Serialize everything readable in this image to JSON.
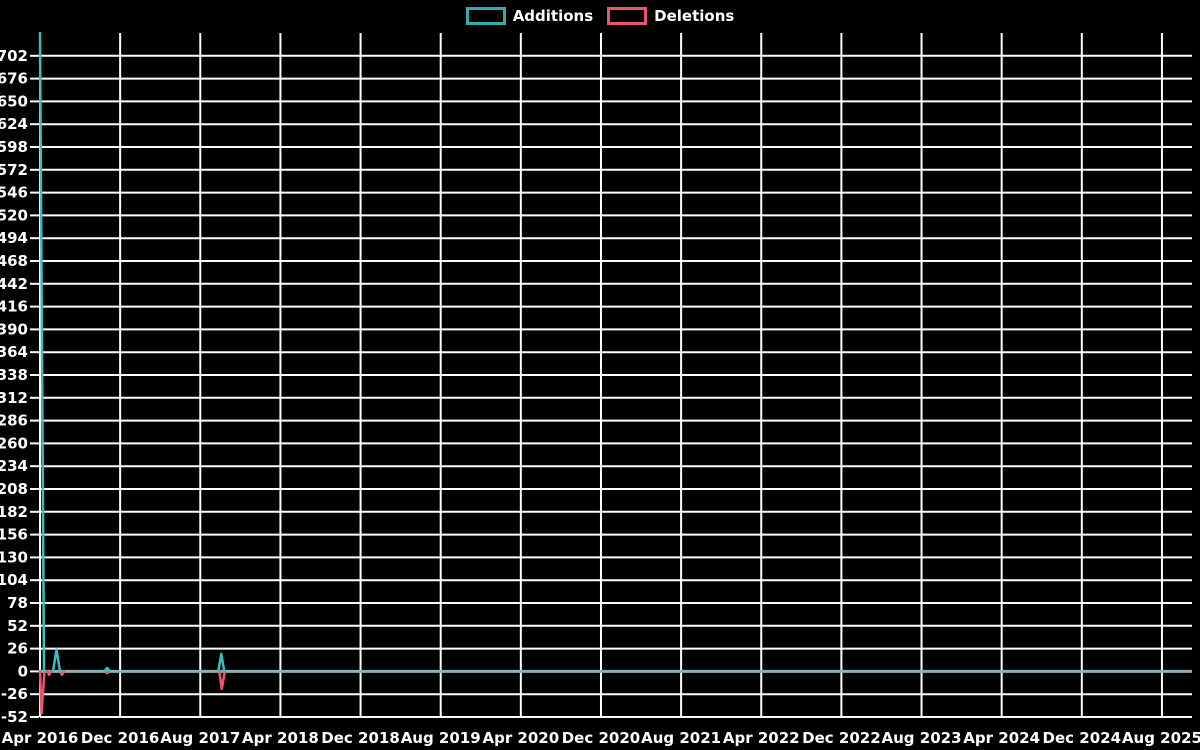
{
  "legend": {
    "items": [
      {
        "label": "Additions",
        "color": "#35ACAC"
      },
      {
        "label": "Deletions",
        "color": "#E8566E"
      }
    ]
  },
  "colors": {
    "background": "#000000",
    "grid": "#FFFFFF",
    "text": "#FFFFFF",
    "additions": "#3DBDBD",
    "deletions": "#E8566E",
    "zero_baseline": "#8FB0BA"
  },
  "chart_data": {
    "type": "line",
    "title": "",
    "legend_position": "top-center",
    "grid": true,
    "x_tick_labels": [
      "Apr 2016",
      "Dec 2016",
      "Aug 2017",
      "Apr 2018",
      "Dec 2018",
      "Aug 2019",
      "Apr 2020",
      "Dec 2020",
      "Aug 2021",
      "Apr 2022",
      "Dec 2022",
      "Aug 2023",
      "Apr 2024",
      "Dec 2024",
      "Aug 2025"
    ],
    "x_tick_interval_months": 8,
    "x_domain_months": [
      0,
      115
    ],
    "y_ticks": [
      702,
      676,
      650,
      624,
      598,
      572,
      546,
      520,
      494,
      468,
      442,
      416,
      390,
      364,
      338,
      312,
      286,
      260,
      234,
      208,
      182,
      156,
      130,
      104,
      78,
      52,
      26,
      0,
      -26,
      -52
    ],
    "ylim": [
      -52,
      728
    ],
    "series": [
      {
        "name": "Additions",
        "color": "#3DBDBD",
        "points": [
          [
            0,
            728
          ],
          [
            0.4,
            0
          ],
          [
            1.3,
            0
          ],
          [
            1.65,
            25
          ],
          [
            2.0,
            0
          ],
          [
            6.4,
            0
          ],
          [
            6.7,
            4
          ],
          [
            7.0,
            0
          ],
          [
            17.8,
            0
          ],
          [
            18.1,
            20
          ],
          [
            18.4,
            0
          ],
          [
            115,
            0
          ]
        ]
      },
      {
        "name": "Deletions",
        "color": "#E8566E",
        "points": [
          [
            0,
            0
          ],
          [
            0.15,
            -48
          ],
          [
            0.45,
            0
          ],
          [
            0.75,
            0
          ],
          [
            0.9,
            -4
          ],
          [
            1.1,
            0
          ],
          [
            2.0,
            0
          ],
          [
            2.2,
            -4
          ],
          [
            2.4,
            0
          ],
          [
            6.5,
            0
          ],
          [
            6.7,
            -2
          ],
          [
            6.9,
            0
          ],
          [
            17.9,
            0
          ],
          [
            18.15,
            -20
          ],
          [
            18.45,
            0
          ],
          [
            115,
            0
          ]
        ]
      }
    ]
  }
}
